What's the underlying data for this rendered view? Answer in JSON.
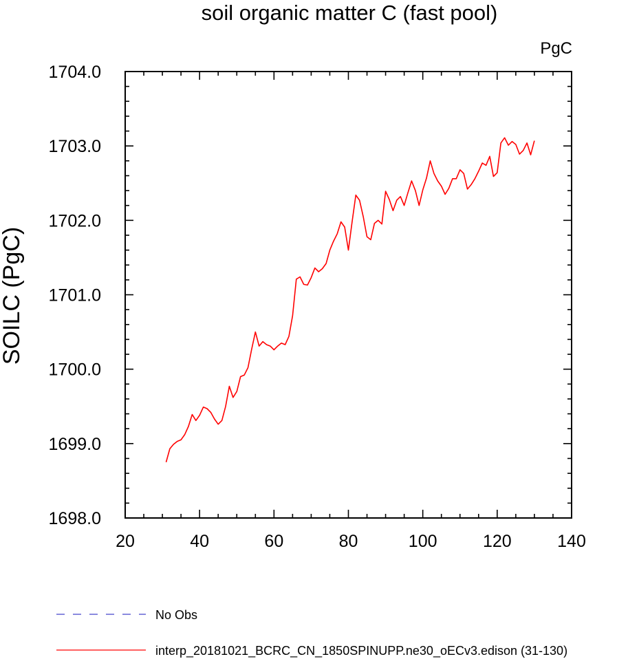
{
  "chart_data": {
    "type": "line",
    "title": "soil organic matter C (fast pool)",
    "units": "PgC",
    "ylabel": "SOILC  (PgC)",
    "xlabel": "",
    "xlim": [
      20,
      140
    ],
    "ylim": [
      1698.0,
      1704.0
    ],
    "x_ticks": [
      20,
      40,
      60,
      80,
      100,
      120,
      140
    ],
    "x_tick_labels": [
      "20",
      "40",
      "60",
      "80",
      "100",
      "120",
      "140"
    ],
    "y_ticks": [
      1698.0,
      1699.0,
      1700.0,
      1701.0,
      1702.0,
      1703.0,
      1704.0
    ],
    "y_tick_labels": [
      "1698.0",
      "1699.0",
      "1700.0",
      "1701.0",
      "1702.0",
      "1703.0",
      "1704.0"
    ],
    "grid": false,
    "legend": [
      {
        "label": "No Obs",
        "color": "#4444cc",
        "style": "dashed"
      },
      {
        "label": "interp_20181021_BCRC_CN_1850SPINUPP.ne30_oECv3.edison (31-130)",
        "color": "#ff0000",
        "style": "solid"
      }
    ],
    "series": [
      {
        "name": "interp_20181021_BCRC_CN_1850SPINUPP.ne30_oECv3.edison (31-130)",
        "color": "#ff0000",
        "x": [
          31,
          32,
          33,
          34,
          35,
          36,
          37,
          38,
          39,
          40,
          41,
          42,
          43,
          44,
          45,
          46,
          47,
          48,
          49,
          50,
          51,
          52,
          53,
          54,
          55,
          56,
          57,
          58,
          59,
          60,
          61,
          62,
          63,
          64,
          65,
          66,
          67,
          68,
          69,
          70,
          71,
          72,
          73,
          74,
          75,
          76,
          77,
          78,
          79,
          80,
          81,
          82,
          83,
          84,
          85,
          86,
          87,
          88,
          89,
          90,
          91,
          92,
          93,
          94,
          95,
          96,
          97,
          98,
          99,
          100,
          101,
          102,
          103,
          104,
          105,
          106,
          107,
          108,
          109,
          110,
          111,
          112,
          113,
          114,
          115,
          116,
          117,
          118,
          119,
          120,
          121,
          122,
          123,
          124,
          125,
          126,
          127,
          128,
          129,
          130
        ],
        "y": [
          1698.75,
          1698.93,
          1698.99,
          1699.03,
          1699.05,
          1699.12,
          1699.23,
          1699.39,
          1699.31,
          1699.38,
          1699.49,
          1699.47,
          1699.42,
          1699.33,
          1699.26,
          1699.31,
          1699.5,
          1699.77,
          1699.62,
          1699.7,
          1699.9,
          1699.92,
          1700.02,
          1700.27,
          1700.5,
          1700.31,
          1700.37,
          1700.33,
          1700.31,
          1700.26,
          1700.31,
          1700.35,
          1700.33,
          1700.44,
          1700.72,
          1701.21,
          1701.24,
          1701.14,
          1701.13,
          1701.23,
          1701.36,
          1701.31,
          1701.35,
          1701.42,
          1701.6,
          1701.72,
          1701.82,
          1701.98,
          1701.91,
          1701.6,
          1701.98,
          1702.34,
          1702.27,
          1702.05,
          1701.78,
          1701.74,
          1701.96,
          1702.0,
          1701.95,
          1702.39,
          1702.28,
          1702.13,
          1702.27,
          1702.32,
          1702.2,
          1702.37,
          1702.53,
          1702.4,
          1702.2,
          1702.41,
          1702.57,
          1702.8,
          1702.63,
          1702.53,
          1702.46,
          1702.35,
          1702.43,
          1702.56,
          1702.56,
          1702.68,
          1702.63,
          1702.42,
          1702.48,
          1702.56,
          1702.66,
          1702.77,
          1702.74,
          1702.86,
          1702.59,
          1702.64,
          1703.04,
          1703.11,
          1703.01,
          1703.06,
          1703.02,
          1702.89,
          1702.94,
          1703.04,
          1702.88,
          1703.07
        ]
      }
    ]
  }
}
